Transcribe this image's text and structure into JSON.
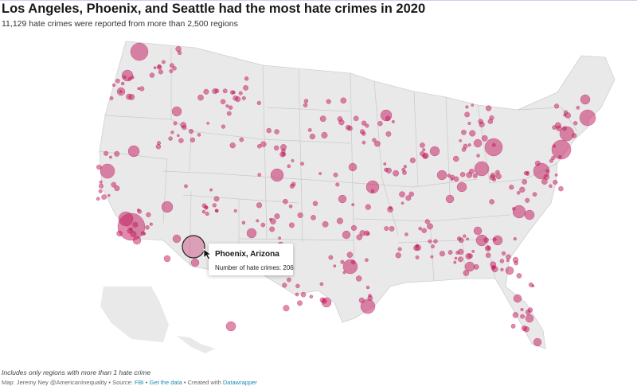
{
  "header": {
    "title": "Los Angeles, Phoenix, and Seattle had the most hate crimes in 2020",
    "subtitle": "11,129 hate crimes were reported from more than 2,500 regions"
  },
  "tooltip": {
    "title": "Phoenix, Arizona",
    "label": "Number of hate crimes:",
    "value": "206"
  },
  "notes": "Includes only regions with more than 1 hate crime",
  "footer": {
    "map_credit": "Map: Jeremy Ney @AmericanInequality",
    "source_label": "Source:",
    "source_name": "FBI",
    "get_data": "Get the data",
    "created_with": "Created with",
    "tool_name": "Datawrapper",
    "sep": "•"
  },
  "colors": {
    "bubble": "#c2185b",
    "land": "#e9e9e9",
    "border": "#c9c9c9",
    "link": "#1f8ab3"
  }
}
